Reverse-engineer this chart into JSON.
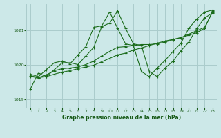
{
  "bg_color": "#cce8e8",
  "grid_color": "#aacccc",
  "line_color": "#1a6b1a",
  "marker_color": "#1a6b1a",
  "title": "Graphe pression niveau de la mer (hPa)",
  "title_color": "#1a5c1a",
  "xlim": [
    -0.5,
    23.5
  ],
  "ylim": [
    1018.75,
    1021.75
  ],
  "yticks": [
    1019,
    1020,
    1021
  ],
  "xticks": [
    0,
    1,
    2,
    3,
    4,
    5,
    6,
    7,
    8,
    9,
    10,
    11,
    12,
    13,
    14,
    15,
    16,
    17,
    18,
    19,
    20,
    21,
    22,
    23
  ],
  "series": [
    [
      1019.3,
      1019.75,
      1019.65,
      1019.85,
      1020.05,
      1020.05,
      1020.0,
      1020.25,
      1020.5,
      1021.1,
      1021.2,
      1021.55,
      1021.05,
      1020.6,
      1020.55,
      1019.8,
      1019.65,
      1019.9,
      1020.1,
      1020.4,
      1020.65,
      1021.05,
      1021.35,
      1021.5
    ],
    [
      1019.65,
      1019.62,
      1019.7,
      1019.82,
      1019.88,
      1019.9,
      1019.93,
      1020.0,
      1020.1,
      1020.25,
      1020.38,
      1020.5,
      1020.52,
      1020.55,
      1020.58,
      1020.58,
      1020.6,
      1020.65,
      1020.72,
      1020.78,
      1020.85,
      1020.92,
      1021.05,
      1021.55
    ],
    [
      1019.68,
      1019.62,
      1019.65,
      1019.72,
      1019.78,
      1019.82,
      1019.88,
      1019.93,
      1019.98,
      1020.08,
      1020.18,
      1020.28,
      1020.33,
      1020.42,
      1020.48,
      1020.55,
      1020.62,
      1020.68,
      1020.73,
      1020.78,
      1020.88,
      1020.98,
      1021.08,
      1021.52
    ],
    [
      1019.72,
      1019.65,
      1019.85,
      1020.05,
      1020.1,
      1020.02,
      1020.28,
      1020.52,
      1021.08,
      1021.12,
      1021.52,
      1021.05,
      1020.6,
      1020.55,
      1019.8,
      1019.65,
      1019.9,
      1020.12,
      1020.38,
      1020.62,
      1021.05,
      1021.32,
      1021.52,
      1021.58
    ]
  ]
}
